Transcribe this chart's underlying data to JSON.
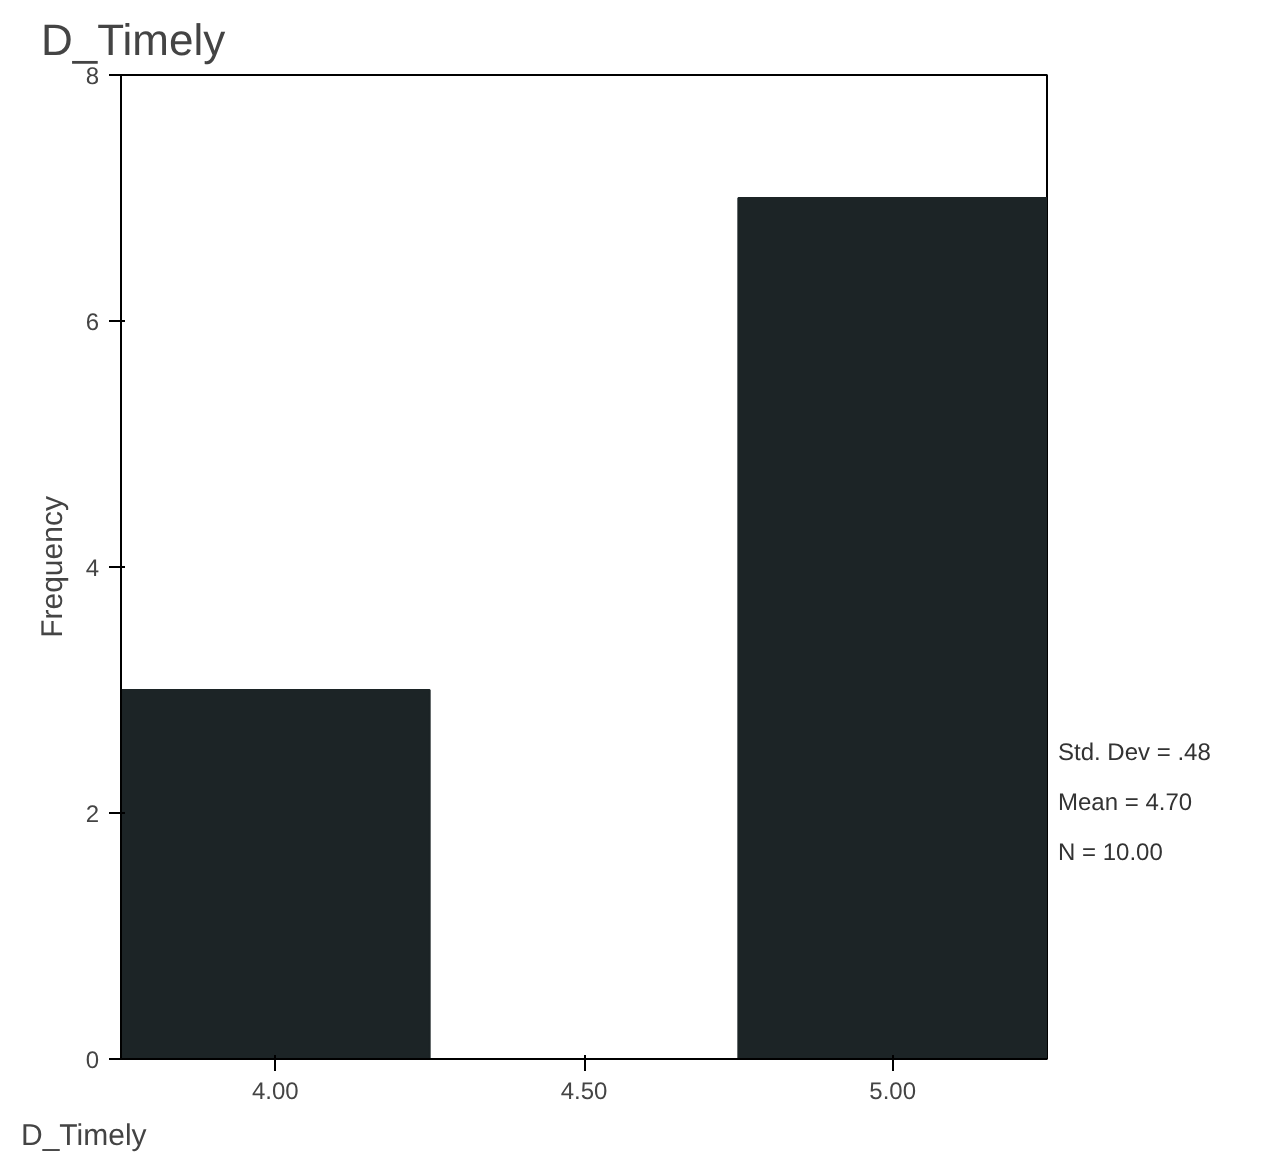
{
  "chart_data": {
    "type": "histogram",
    "title": "D_Timely",
    "xlabel": "D_Timely",
    "ylabel": "Frequency",
    "bins": [
      3.75,
      4.25,
      4.75,
      5.25
    ],
    "values": [
      3,
      0,
      7
    ],
    "color": "#1c2426",
    "xlim": [
      3.75,
      5.25
    ],
    "ylim": [
      0,
      8
    ],
    "xticks": [
      {
        "value": 4,
        "label": "4.00"
      },
      {
        "value": 4.5,
        "label": "4.50"
      },
      {
        "value": 5,
        "label": "5.00"
      }
    ],
    "yticks": [
      0,
      2,
      4,
      6,
      8
    ],
    "grid": false,
    "annotations": [
      "Std. Dev = .48",
      "Mean = 4.70",
      "N = 10.00"
    ]
  }
}
